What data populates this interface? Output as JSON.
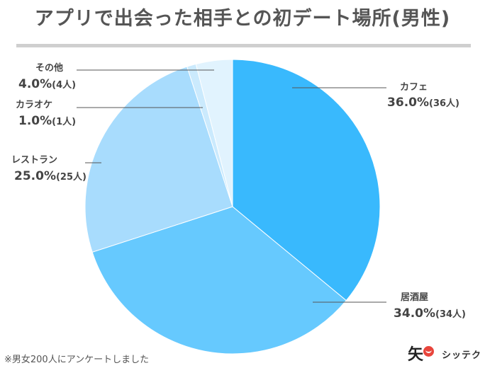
{
  "title": "アプリで出会った相手との初デート場所(男性)",
  "footnote": "※男女200人にアンケートしました",
  "logo": {
    "mark": "矢",
    "text": "シッテク"
  },
  "chart_data": {
    "type": "pie",
    "title": "アプリで出会った相手との初デート場所(男性)",
    "slices": [
      {
        "label": "カフェ",
        "percent_text": "36.0%",
        "count_text": "(36人)",
        "value": 36.0,
        "color": "#39b9fd"
      },
      {
        "label": "居酒屋",
        "percent_text": "34.0%",
        "count_text": "(34人)",
        "value": 34.0,
        "color": "#66c9fe"
      },
      {
        "label": "レストラン",
        "percent_text": "25.0%",
        "count_text": "(25人)",
        "value": 25.0,
        "color": "#a8dcfd"
      },
      {
        "label": "カラオケ",
        "percent_text": "1.0%",
        "count_text": "(1人)",
        "value": 1.0,
        "color": "#cbeafd"
      },
      {
        "label": "その他",
        "percent_text": "4.0%",
        "count_text": "(4人)",
        "value": 4.0,
        "color": "#e1f3fe"
      }
    ]
  }
}
